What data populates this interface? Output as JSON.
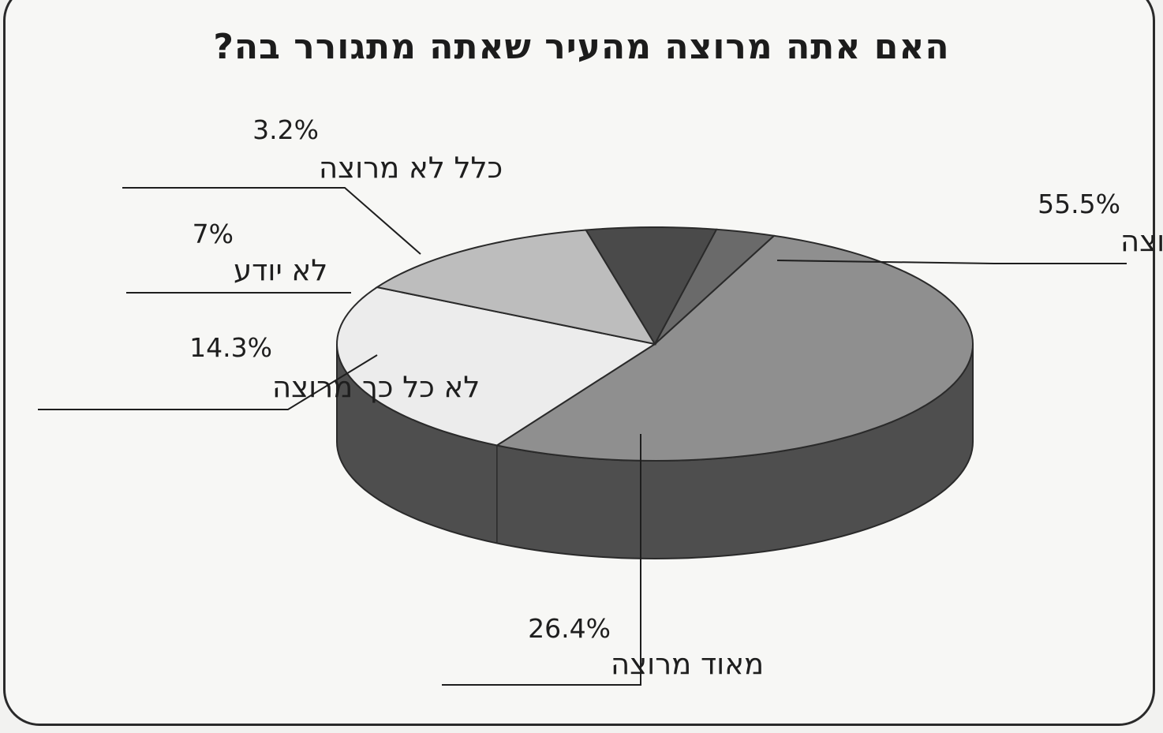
{
  "chart_data": {
    "type": "pie",
    "title": "האם אתה מרוצה מהעיר שאתה מתגורר בה?",
    "slices": [
      {
        "label": "די מרוצה",
        "value": 55.5,
        "value_text": "55.5%",
        "color": "#8f8f8f"
      },
      {
        "label": "מאוד מרוצה",
        "value": 26.4,
        "value_text": "26.4%",
        "color": "#ececec"
      },
      {
        "label": "לא כל כך מרוצה",
        "value": 14.3,
        "value_text": "14.3%",
        "color": "#bdbdbd"
      },
      {
        "label": "לא יודע",
        "value": 7,
        "value_text": "7%",
        "color": "#4a4a4a"
      },
      {
        "label": "כלל לא מרוצה",
        "value": 3.2,
        "value_text": "3.2%",
        "color": "#6a6a6a"
      }
    ],
    "style": "3d-pie",
    "legend": "none",
    "side_color": "#4e4e4e"
  }
}
